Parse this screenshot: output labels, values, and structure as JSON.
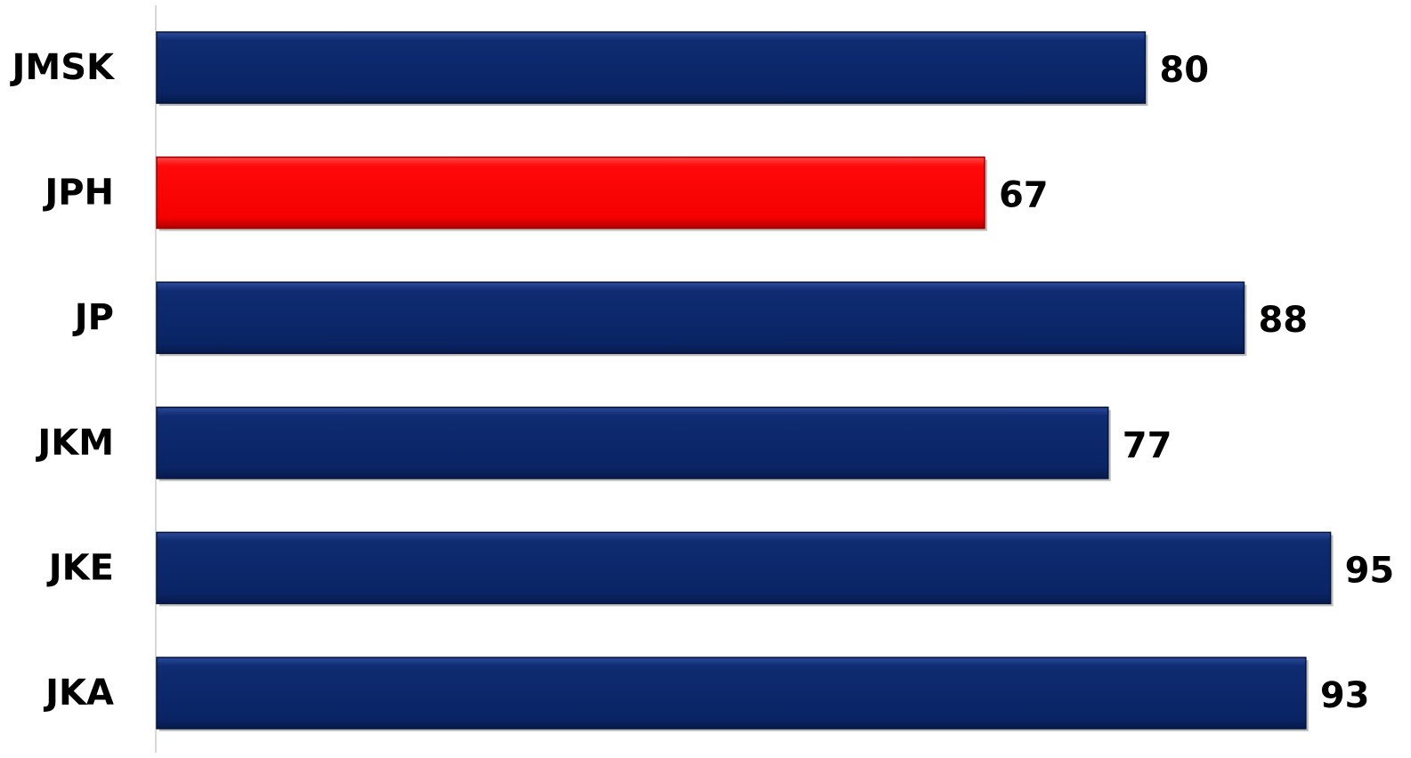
{
  "chart_data": {
    "type": "bar",
    "orientation": "horizontal",
    "categories": [
      "JMSK",
      "JPH",
      "JP",
      "JKM",
      "JKE",
      "JKA"
    ],
    "values": [
      80,
      67,
      88,
      77,
      95,
      93
    ],
    "highlight": "JPH",
    "bar_color": "#0d2a6e",
    "highlight_color": "#ff0000",
    "title": "",
    "xlabel": "",
    "ylabel": "",
    "xlim": [
      0,
      100
    ],
    "grid": false,
    "legend": "none",
    "data_labels": true
  }
}
